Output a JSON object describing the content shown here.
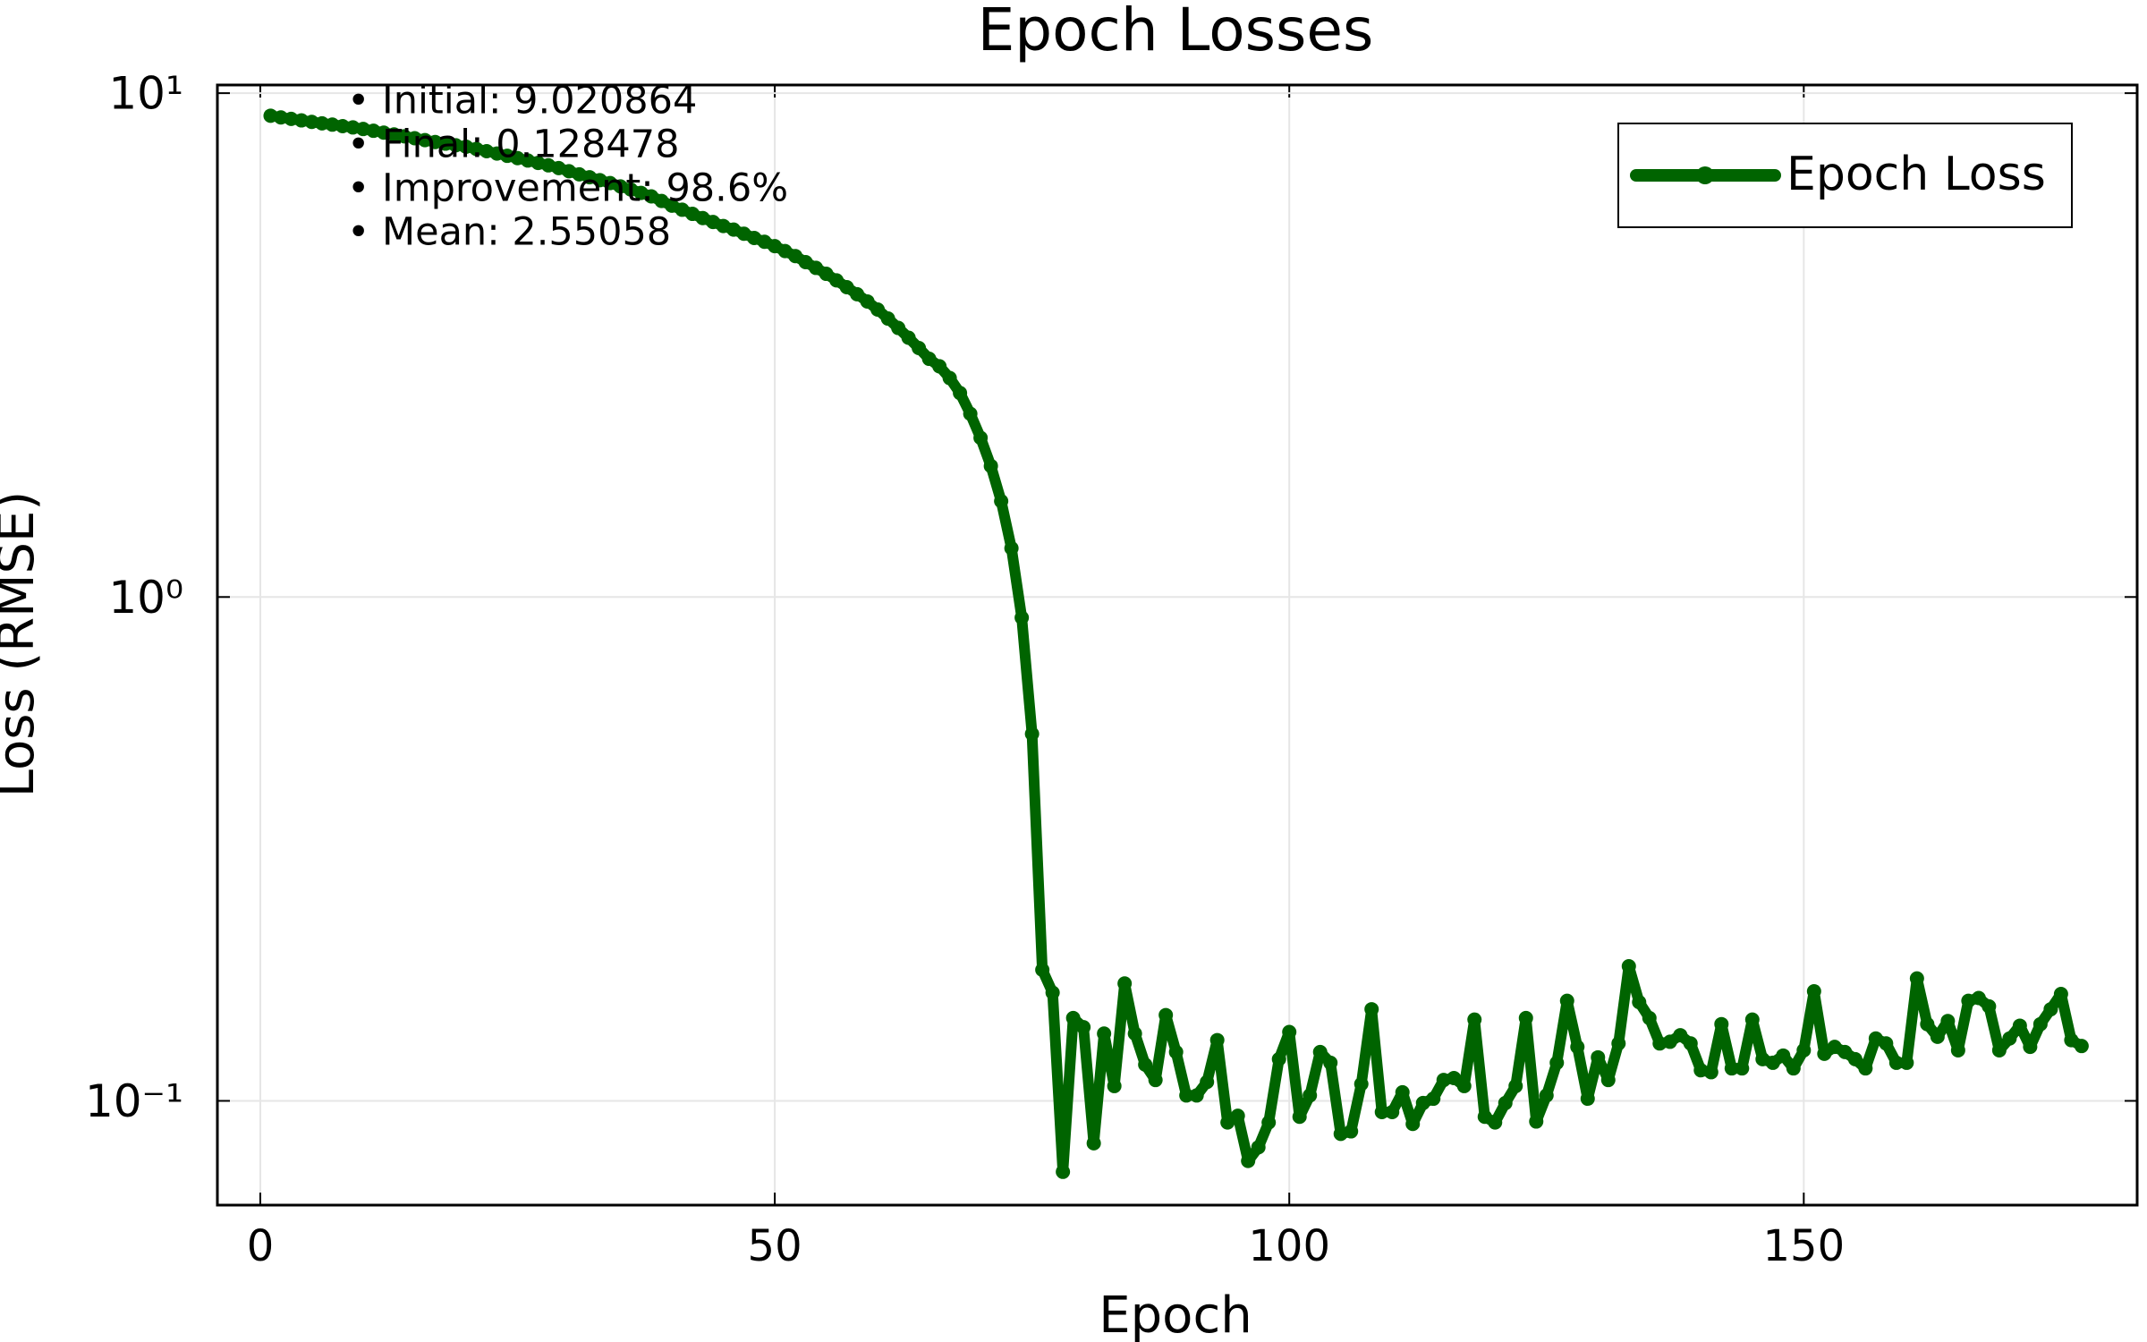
{
  "chart_data": {
    "type": "line",
    "title": "Epoch Losses",
    "xlabel": "Epoch",
    "ylabel": "Loss (RMSE)",
    "log_y": true,
    "grid": true,
    "legend": "top-right",
    "xlim": [
      -4.17,
      182.4
    ],
    "xticks": [
      0,
      50,
      100,
      150
    ],
    "ylim": [
      0.0621,
      10.38
    ],
    "yticks": [
      {
        "value": 10,
        "label": "10¹"
      },
      {
        "value": 1,
        "label": "10⁰"
      },
      {
        "value": 0.1,
        "label": "10⁻¹"
      }
    ],
    "annotations": [
      "• Initial: 9.020864",
      "• Final: 0.128478",
      "• Improvement: 98.6%",
      "• Mean: 2.55058"
    ],
    "series": [
      {
        "name": "Epoch Loss",
        "color": "#006400",
        "x": [
          1,
          2,
          3,
          4,
          5,
          6,
          7,
          8,
          9,
          10,
          11,
          12,
          13,
          14,
          15,
          16,
          17,
          18,
          19,
          20,
          21,
          22,
          23,
          24,
          25,
          26,
          27,
          28,
          29,
          30,
          31,
          32,
          33,
          34,
          35,
          36,
          37,
          38,
          39,
          40,
          41,
          42,
          43,
          44,
          45,
          46,
          47,
          48,
          49,
          50,
          51,
          52,
          53,
          54,
          55,
          56,
          57,
          58,
          59,
          60,
          61,
          62,
          63,
          64,
          65,
          66,
          67,
          68,
          69,
          70,
          71,
          72,
          73,
          74,
          75,
          76,
          77,
          78,
          79,
          80,
          81,
          82,
          83,
          84,
          85,
          86,
          87,
          88,
          89,
          90,
          91,
          92,
          93,
          94,
          95,
          96,
          97,
          98,
          99,
          100,
          101,
          102,
          103,
          104,
          105,
          106,
          107,
          108,
          109,
          110,
          111,
          112,
          113,
          114,
          115,
          116,
          117,
          118,
          119,
          120,
          121,
          122,
          123,
          124,
          125,
          126,
          127,
          128,
          129,
          130,
          131,
          132,
          133,
          134,
          135,
          136,
          137,
          138,
          139,
          140,
          141,
          142,
          143,
          144,
          145,
          146,
          147,
          148,
          149,
          150,
          151,
          152,
          153,
          154,
          155,
          156,
          157,
          158,
          159,
          160,
          161,
          162,
          163,
          164,
          165,
          166,
          167,
          168,
          169,
          170,
          171,
          172,
          173,
          174,
          175,
          176,
          177
        ],
        "values": [
          9.021,
          8.95,
          8.89,
          8.83,
          8.77,
          8.71,
          8.66,
          8.6,
          8.55,
          8.49,
          8.42,
          8.35,
          8.28,
          8.21,
          8.14,
          8.07,
          8.0,
          7.94,
          7.88,
          7.83,
          7.75,
          7.67,
          7.59,
          7.51,
          7.43,
          7.35,
          7.27,
          7.19,
          7.1,
          7.0,
          6.9,
          6.81,
          6.72,
          6.63,
          6.53,
          6.44,
          6.34,
          6.24,
          6.11,
          5.98,
          5.87,
          5.76,
          5.65,
          5.55,
          5.45,
          5.36,
          5.26,
          5.16,
          5.07,
          4.97,
          4.86,
          4.75,
          4.62,
          4.5,
          4.38,
          4.25,
          4.12,
          3.99,
          3.86,
          3.72,
          3.57,
          3.42,
          3.27,
          3.12,
          2.97,
          2.87,
          2.72,
          2.54,
          2.31,
          2.07,
          1.82,
          1.55,
          1.25,
          0.91,
          0.535,
          0.182,
          0.164,
          0.0723,
          0.146,
          0.14,
          0.0824,
          0.136,
          0.107,
          0.171,
          0.136,
          0.118,
          0.11,
          0.148,
          0.125,
          0.1025,
          0.1025,
          0.109,
          0.132,
          0.0906,
          0.0934,
          0.076,
          0.0809,
          0.0906,
          0.121,
          0.137,
          0.093,
          0.1025,
          0.125,
          0.119,
          0.086,
          0.087,
          0.108,
          0.152,
          0.095,
          0.095,
          0.104,
          0.09,
          0.099,
          0.101,
          0.11,
          0.111,
          0.107,
          0.145,
          0.093,
          0.0906,
          0.099,
          0.107,
          0.146,
          0.091,
          0.1025,
          0.119,
          0.158,
          0.128,
          0.101,
          0.122,
          0.11,
          0.13,
          0.185,
          0.157,
          0.146,
          0.13,
          0.131,
          0.135,
          0.13,
          0.115,
          0.114,
          0.142,
          0.116,
          0.116,
          0.145,
          0.121,
          0.119,
          0.123,
          0.116,
          0.126,
          0.165,
          0.124,
          0.128,
          0.125,
          0.121,
          0.116,
          0.133,
          0.13,
          0.119,
          0.119,
          0.175,
          0.142,
          0.134,
          0.144,
          0.126,
          0.158,
          0.16,
          0.154,
          0.126,
          0.133,
          0.141,
          0.128,
          0.142,
          0.152,
          0.163,
          0.132,
          0.128478
        ]
      }
    ]
  }
}
